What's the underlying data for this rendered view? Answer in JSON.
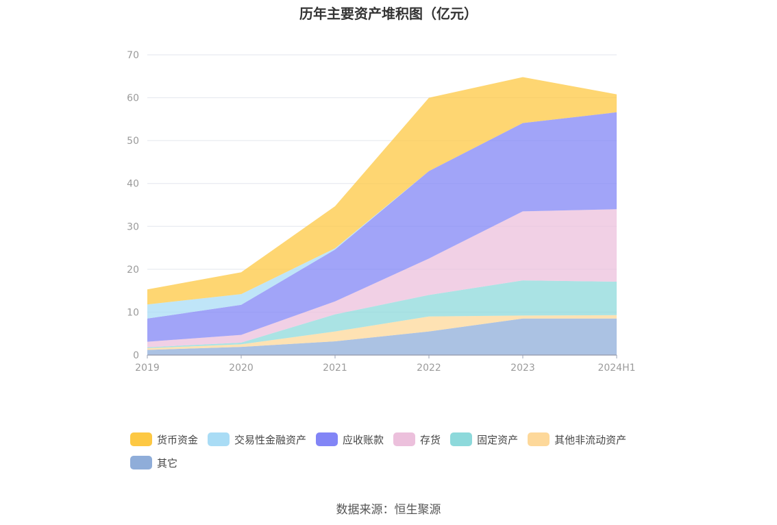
{
  "chart_data": {
    "type": "area",
    "stacked": true,
    "title": "历年主要资产堆积图（亿元）",
    "categories": [
      "2019",
      "2020",
      "2021",
      "2022",
      "2023",
      "2024H1"
    ],
    "ylim": [
      0,
      70
    ],
    "yticks": [
      "0",
      "10",
      "20",
      "30",
      "40",
      "50",
      "60",
      "70"
    ],
    "grid": true,
    "legend_position": "bottom",
    "series": [
      {
        "name": "其它",
        "color": "#8fadd9",
        "values": [
          1.2,
          1.9,
          3.2,
          5.5,
          8.5,
          8.5
        ]
      },
      {
        "name": "其他非流动资产",
        "color": "#fdd89a",
        "values": [
          0.4,
          0.6,
          2.3,
          3.5,
          0.7,
          0.8
        ]
      },
      {
        "name": "固定资产",
        "color": "#8dd9db",
        "values": [
          0.2,
          0.4,
          4.0,
          5.0,
          8.2,
          7.8
        ]
      },
      {
        "name": "存货",
        "color": "#ecc0dc",
        "values": [
          1.3,
          1.8,
          3.0,
          8.5,
          16.1,
          16.9
        ]
      },
      {
        "name": "应收账款",
        "color": "#8285f6",
        "values": [
          5.4,
          7.0,
          12.1,
          20.4,
          20.6,
          22.6
        ]
      },
      {
        "name": "交易性金融资产",
        "color": "#a9dcf5",
        "values": [
          3.3,
          2.5,
          0.3,
          0,
          0,
          0
        ]
      },
      {
        "name": "货币资金",
        "color": "#fdc843",
        "values": [
          3.5,
          5.1,
          9.8,
          17.1,
          10.7,
          4.2
        ]
      }
    ],
    "legend_order": [
      "货币资金",
      "交易性金融资产",
      "应收账款",
      "存货",
      "固定资产",
      "其他非流动资产",
      "其它"
    ]
  },
  "source": "数据来源：恒生聚源"
}
